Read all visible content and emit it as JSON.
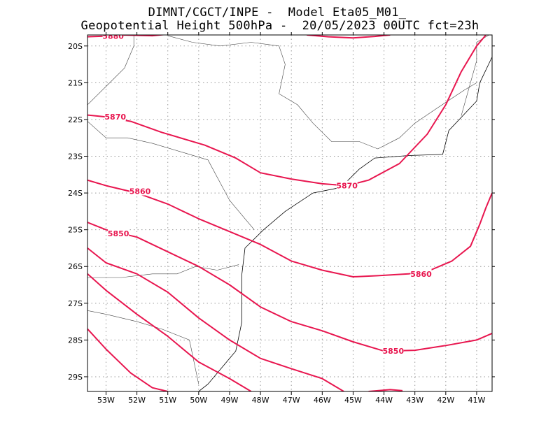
{
  "header": {
    "line1": "DIMNT/CGCT/INPE -  Model Eta05_M01_",
    "line2": "Geopotential Height 500hPa -  20/05/2023 00UTC fct=23h"
  },
  "map": {
    "lon_range": [
      -53.6,
      -40.5
    ],
    "lat_range": [
      -29.4,
      -19.7
    ],
    "lon_ticks": [
      {
        "lon": -53,
        "label": "53W"
      },
      {
        "lon": -52,
        "label": "52W"
      },
      {
        "lon": -51,
        "label": "51W"
      },
      {
        "lon": -50,
        "label": "50W"
      },
      {
        "lon": -49,
        "label": "49W"
      },
      {
        "lon": -48,
        "label": "48W"
      },
      {
        "lon": -47,
        "label": "47W"
      },
      {
        "lon": -46,
        "label": "46W"
      },
      {
        "lon": -45,
        "label": "45W"
      },
      {
        "lon": -44,
        "label": "44W"
      },
      {
        "lon": -43,
        "label": "43W"
      },
      {
        "lon": -42,
        "label": "42W"
      },
      {
        "lon": -41,
        "label": "41W"
      }
    ],
    "lat_ticks": [
      {
        "lat": -20,
        "label": "20S"
      },
      {
        "lat": -21,
        "label": "21S"
      },
      {
        "lat": -22,
        "label": "22S"
      },
      {
        "lat": -23,
        "label": "23S"
      },
      {
        "lat": -24,
        "label": "24S"
      },
      {
        "lat": -25,
        "label": "25S"
      },
      {
        "lat": -26,
        "label": "26S"
      },
      {
        "lat": -27,
        "label": "27S"
      },
      {
        "lat": -28,
        "label": "28S"
      },
      {
        "lat": -29,
        "label": "29S"
      }
    ],
    "contour_color": "#e8164f",
    "contours": [
      {
        "level": "5880",
        "points": [
          [
            -53.6,
            -19.75
          ],
          [
            -53.0,
            -19.73
          ],
          [
            -52.5,
            -19.7
          ],
          [
            -51.5,
            -19.72
          ],
          [
            -51.0,
            -19.68
          ]
        ],
        "labels": [
          {
            "text": "5880",
            "lon": -52.77,
            "lat": -19.73
          }
        ]
      },
      {
        "level": "5880",
        "points": [
          [
            -46.5,
            -19.7
          ],
          [
            -45.8,
            -19.75
          ],
          [
            -45.0,
            -19.78
          ],
          [
            -44.3,
            -19.74
          ],
          [
            -43.8,
            -19.7
          ]
        ],
        "labels": []
      },
      {
        "level": "5870",
        "points": [
          [
            -53.6,
            -21.88
          ],
          [
            -53.0,
            -21.93
          ],
          [
            -52.2,
            -22.05
          ],
          [
            -51.2,
            -22.35
          ],
          [
            -49.8,
            -22.7
          ],
          [
            -48.8,
            -23.05
          ],
          [
            -48.0,
            -23.45
          ],
          [
            -47.0,
            -23.62
          ],
          [
            -46.0,
            -23.75
          ],
          [
            -45.2,
            -23.8
          ],
          [
            -44.5,
            -23.65
          ],
          [
            -43.5,
            -23.2
          ],
          [
            -42.6,
            -22.4
          ],
          [
            -42.0,
            -21.6
          ],
          [
            -41.5,
            -20.7
          ],
          [
            -41.0,
            -20.0
          ],
          [
            -40.7,
            -19.7
          ]
        ],
        "labels": [
          {
            "text": "5870",
            "lon": -52.7,
            "lat": -21.93
          },
          {
            "text": "5870",
            "lon": -45.2,
            "lat": -23.8
          }
        ]
      },
      {
        "level": "5860",
        "points": [
          [
            -53.6,
            -23.65
          ],
          [
            -53.0,
            -23.8
          ],
          [
            -52.0,
            -24.0
          ],
          [
            -51.0,
            -24.3
          ],
          [
            -50.0,
            -24.7
          ],
          [
            -49.0,
            -25.05
          ],
          [
            -48.0,
            -25.4
          ],
          [
            -47.0,
            -25.85
          ],
          [
            -46.0,
            -26.1
          ],
          [
            -45.0,
            -26.28
          ],
          [
            -44.2,
            -26.25
          ],
          [
            -43.2,
            -26.2
          ],
          [
            -42.5,
            -26.1
          ],
          [
            -41.8,
            -25.85
          ],
          [
            -41.2,
            -25.45
          ],
          [
            -40.9,
            -24.85
          ],
          [
            -40.7,
            -24.4
          ],
          [
            -40.5,
            -24.0
          ]
        ],
        "labels": [
          {
            "text": "5860",
            "lon": -51.9,
            "lat": -23.95
          },
          {
            "text": "5860",
            "lon": -42.8,
            "lat": -26.2
          }
        ]
      },
      {
        "level": "5850",
        "points": [
          [
            -53.6,
            -24.8
          ],
          [
            -53.0,
            -25.0
          ],
          [
            -52.0,
            -25.2
          ],
          [
            -51.0,
            -25.6
          ],
          [
            -50.0,
            -26.0
          ],
          [
            -49.0,
            -26.5
          ],
          [
            -48.0,
            -27.1
          ],
          [
            -47.0,
            -27.5
          ],
          [
            -46.0,
            -27.75
          ],
          [
            -45.0,
            -28.05
          ],
          [
            -44.0,
            -28.3
          ],
          [
            -43.0,
            -28.28
          ],
          [
            -42.0,
            -28.15
          ],
          [
            -41.0,
            -28.0
          ],
          [
            -40.5,
            -27.82
          ]
        ],
        "labels": [
          {
            "text": "5850",
            "lon": -52.6,
            "lat": -25.1
          },
          {
            "text": "5850",
            "lon": -43.7,
            "lat": -28.3
          }
        ]
      },
      {
        "level": "",
        "points": [
          [
            -53.6,
            -25.5
          ],
          [
            -53.0,
            -25.9
          ],
          [
            -52.0,
            -26.2
          ],
          [
            -51.0,
            -26.7
          ],
          [
            -50.0,
            -27.4
          ],
          [
            -49.0,
            -28.0
          ],
          [
            -48.0,
            -28.5
          ],
          [
            -47.0,
            -28.78
          ],
          [
            -46.0,
            -29.05
          ],
          [
            -45.3,
            -29.4
          ]
        ],
        "labels": []
      },
      {
        "level": "",
        "points": [
          [
            -53.6,
            -26.2
          ],
          [
            -53.0,
            -26.65
          ],
          [
            -52.0,
            -27.3
          ],
          [
            -51.0,
            -27.9
          ],
          [
            -50.0,
            -28.6
          ],
          [
            -49.0,
            -29.05
          ],
          [
            -48.3,
            -29.4
          ]
        ],
        "labels": []
      },
      {
        "level": "",
        "points": [
          [
            -53.6,
            -27.7
          ],
          [
            -53.0,
            -28.25
          ],
          [
            -52.2,
            -28.9
          ],
          [
            -51.5,
            -29.3
          ],
          [
            -51.0,
            -29.4
          ]
        ],
        "labels": []
      },
      {
        "level": "",
        "points": [
          [
            -44.5,
            -29.4
          ],
          [
            -43.8,
            -29.35
          ],
          [
            -43.4,
            -29.38
          ]
        ],
        "labels": []
      }
    ],
    "coast_color": "#000000",
    "coastline": [
      [
        -40.5,
        -20.3
      ],
      [
        -40.9,
        -21.0
      ],
      [
        -41.0,
        -21.5
      ],
      [
        -41.9,
        -22.3
      ],
      [
        -42.1,
        -22.95
      ],
      [
        -43.2,
        -22.98
      ],
      [
        -44.3,
        -23.05
      ],
      [
        -44.8,
        -23.35
      ],
      [
        -45.4,
        -23.85
      ],
      [
        -46.3,
        -24.0
      ],
      [
        -47.2,
        -24.5
      ],
      [
        -47.9,
        -25.0
      ],
      [
        -48.5,
        -25.5
      ],
      [
        -48.6,
        -26.2
      ],
      [
        -48.6,
        -26.9
      ],
      [
        -48.6,
        -27.5
      ],
      [
        -48.8,
        -28.3
      ],
      [
        -49.7,
        -29.2
      ],
      [
        -50.0,
        -29.4
      ]
    ],
    "borders": [
      [
        [
          -51.0,
          -19.72
        ],
        [
          -50.2,
          -19.9
        ],
        [
          -49.3,
          -20.0
        ],
        [
          -48.3,
          -19.9
        ],
        [
          -47.4,
          -20.0
        ],
        [
          -47.2,
          -20.5
        ],
        [
          -47.4,
          -21.3
        ],
        [
          -46.8,
          -21.6
        ],
        [
          -46.3,
          -22.1
        ],
        [
          -45.7,
          -22.6
        ],
        [
          -44.8,
          -22.6
        ],
        [
          -44.2,
          -22.8
        ]
      ],
      [
        [
          -53.6,
          -22.05
        ],
        [
          -53.0,
          -22.5
        ],
        [
          -52.3,
          -22.5
        ],
        [
          -51.5,
          -22.65
        ],
        [
          -50.5,
          -22.9
        ],
        [
          -49.7,
          -23.1
        ],
        [
          -49.0,
          -24.2
        ],
        [
          -48.5,
          -24.7
        ],
        [
          -48.2,
          -25.0
        ]
      ],
      [
        [
          -53.6,
          -26.3
        ],
        [
          -52.5,
          -26.3
        ],
        [
          -51.5,
          -26.2
        ],
        [
          -50.7,
          -26.2
        ],
        [
          -50.1,
          -26.0
        ],
        [
          -49.4,
          -26.1
        ],
        [
          -48.7,
          -25.95
        ]
      ],
      [
        [
          -53.6,
          -27.2
        ],
        [
          -53.0,
          -27.3
        ],
        [
          -52.0,
          -27.5
        ],
        [
          -51.2,
          -27.7
        ],
        [
          -50.3,
          -28.0
        ],
        [
          -50.0,
          -29.2
        ]
      ],
      [
        [
          -53.6,
          -21.6
        ],
        [
          -53.0,
          -21.1
        ],
        [
          -52.4,
          -20.6
        ],
        [
          -52.1,
          -20.0
        ],
        [
          -52.1,
          -19.7
        ]
      ],
      [
        [
          -44.2,
          -22.8
        ],
        [
          -43.5,
          -22.5
        ],
        [
          -43.0,
          -22.1
        ],
        [
          -42.3,
          -21.7
        ],
        [
          -41.4,
          -21.2
        ],
        [
          -41.0,
          -21.0
        ]
      ],
      [
        [
          -41.5,
          -21.9
        ],
        [
          -41.2,
          -21.0
        ],
        [
          -41.0,
          -20.4
        ],
        [
          -41.0,
          -19.9
        ],
        [
          -40.6,
          -19.7
        ]
      ]
    ]
  }
}
